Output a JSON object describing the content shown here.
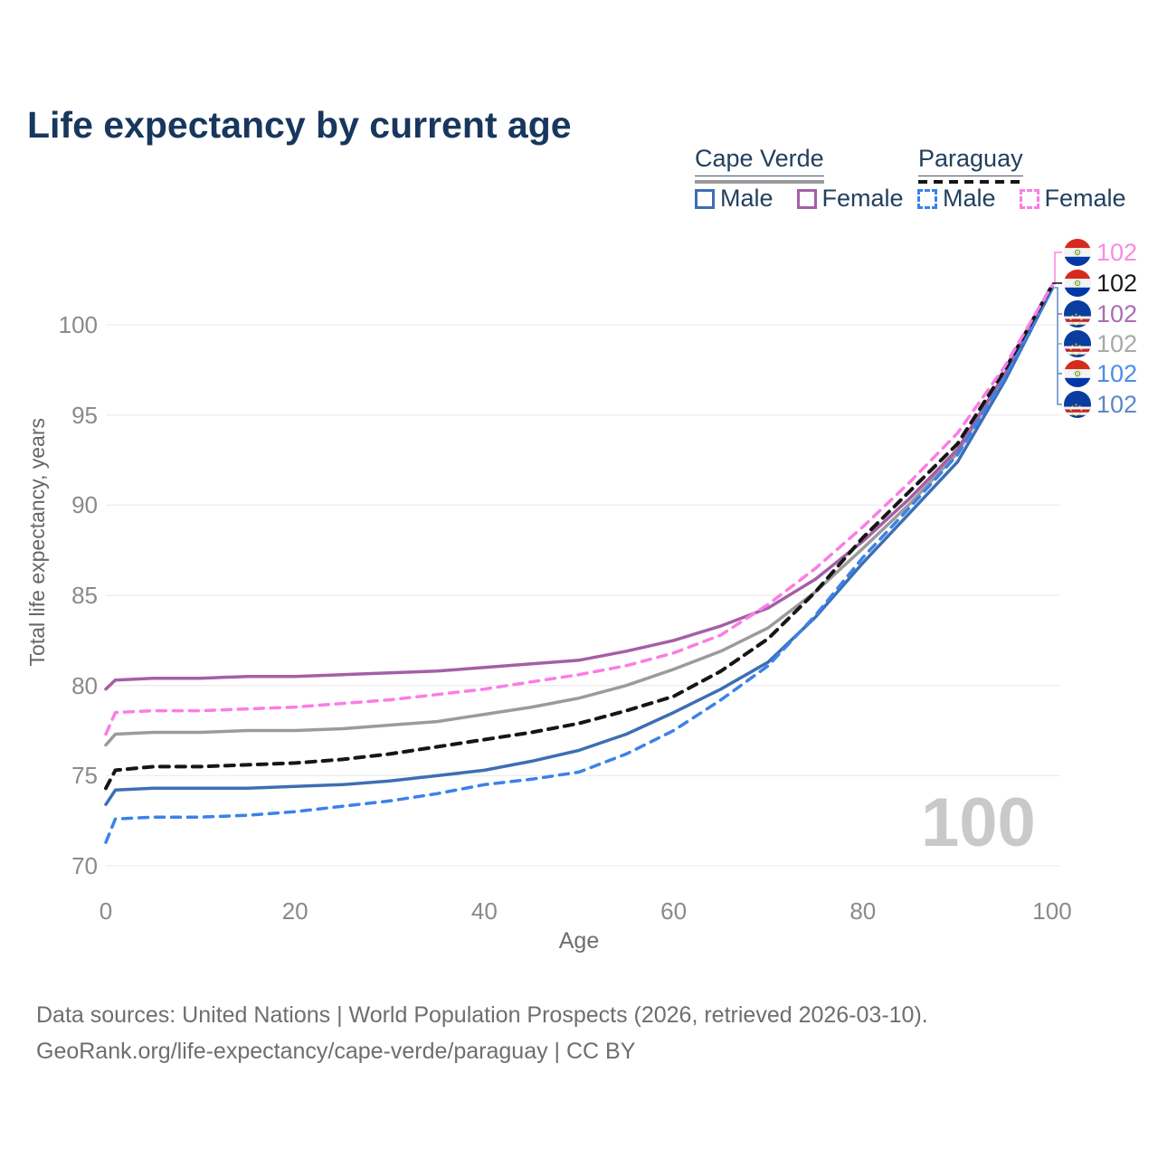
{
  "title": "Life expectancy by current age",
  "watermark": "100",
  "legend": {
    "groups": [
      {
        "label": "Cape Verde",
        "line_style": "solid",
        "line_color": "#9a9a9a",
        "items": [
          {
            "label": "Male",
            "color": "#3d6eb5",
            "dashed": false
          },
          {
            "label": "Female",
            "color": "#a45fa6",
            "dashed": false
          }
        ]
      },
      {
        "label": "Paraguay",
        "line_style": "dashed",
        "line_color": "#161616",
        "items": [
          {
            "label": "Male",
            "color": "#3b82e8",
            "dashed": true
          },
          {
            "label": "Female",
            "color": "#fb7de4",
            "dashed": true
          }
        ]
      }
    ]
  },
  "chart_data": {
    "type": "line",
    "title": "Life expectancy by current age",
    "xlabel": "Age",
    "ylabel": "Total life expectancy, years",
    "xlim": [
      0,
      100
    ],
    "ylim": [
      69.5,
      103
    ],
    "xticks": [
      0,
      20,
      40,
      60,
      80,
      100
    ],
    "yticks": [
      70,
      75,
      80,
      85,
      90,
      95,
      100
    ],
    "grid": "horizontal-only",
    "legend_position": "top-right",
    "x": [
      0,
      1,
      5,
      10,
      15,
      20,
      25,
      30,
      35,
      40,
      45,
      50,
      55,
      60,
      65,
      70,
      75,
      80,
      85,
      90,
      95,
      100
    ],
    "series": [
      {
        "name": "Cape Verde All",
        "country": "Cape Verde",
        "sex": "All",
        "color": "#9b9b9b",
        "dashed": false,
        "values": [
          76.7,
          77.3,
          77.4,
          77.4,
          77.5,
          77.5,
          77.6,
          77.8,
          78.0,
          78.4,
          78.8,
          79.3,
          80.0,
          80.9,
          81.9,
          83.2,
          85.2,
          87.6,
          90.1,
          92.9,
          97.2,
          102.1
        ]
      },
      {
        "name": "Cape Verde Female",
        "country": "Cape Verde",
        "sex": "Female",
        "color": "#a45fa6",
        "dashed": false,
        "values": [
          79.8,
          80.3,
          80.4,
          80.4,
          80.5,
          80.5,
          80.6,
          80.7,
          80.8,
          81.0,
          81.2,
          81.4,
          81.9,
          82.5,
          83.3,
          84.3,
          85.9,
          88.0,
          90.4,
          93.1,
          97.3,
          102.1
        ]
      },
      {
        "name": "Cape Verde Male",
        "country": "Cape Verde",
        "sex": "Male",
        "color": "#3d6eb5",
        "dashed": false,
        "values": [
          73.4,
          74.2,
          74.3,
          74.3,
          74.3,
          74.4,
          74.5,
          74.7,
          75.0,
          75.3,
          75.8,
          76.4,
          77.3,
          78.5,
          79.8,
          81.3,
          83.8,
          86.8,
          89.6,
          92.4,
          96.9,
          102.0
        ]
      },
      {
        "name": "Paraguay Male",
        "country": "Paraguay",
        "sex": "Male",
        "color": "#3b82e8",
        "dashed": true,
        "values": [
          71.3,
          72.6,
          72.7,
          72.7,
          72.8,
          73.0,
          73.3,
          73.6,
          74.0,
          74.5,
          74.8,
          75.2,
          76.2,
          77.5,
          79.2,
          81.1,
          83.9,
          87.1,
          89.9,
          92.8,
          97.1,
          102.0
        ]
      },
      {
        "name": "Paraguay All",
        "country": "Paraguay",
        "sex": "All",
        "color": "#161616",
        "dashed": true,
        "values": [
          74.3,
          75.3,
          75.5,
          75.5,
          75.6,
          75.7,
          75.9,
          76.2,
          76.6,
          77.0,
          77.4,
          77.9,
          78.6,
          79.4,
          80.8,
          82.6,
          85.2,
          88.2,
          90.8,
          93.4,
          97.5,
          102.2
        ]
      },
      {
        "name": "Paraguay Female",
        "country": "Paraguay",
        "sex": "Female",
        "color": "#fb7de4",
        "dashed": true,
        "values": [
          77.3,
          78.5,
          78.6,
          78.6,
          78.7,
          78.8,
          79.0,
          79.2,
          79.5,
          79.8,
          80.2,
          80.6,
          81.1,
          81.8,
          82.8,
          84.5,
          86.5,
          88.8,
          91.3,
          94.0,
          97.7,
          102.2
        ]
      }
    ],
    "end_labels": [
      {
        "value": "102",
        "flag": "paraguay",
        "color": "#fb8ae4",
        "series": "Paraguay Female"
      },
      {
        "value": "102",
        "flag": "paraguay",
        "color": "#1a1a1a",
        "series": "Paraguay All"
      },
      {
        "value": "102",
        "flag": "cape-verde",
        "color": "#ad6cb2",
        "series": "Cape Verde Female"
      },
      {
        "value": "102",
        "flag": "cape-verde",
        "color": "#a9a9a9",
        "series": "Cape Verde All"
      },
      {
        "value": "102",
        "flag": "paraguay",
        "color": "#4a8de8",
        "series": "Paraguay Male"
      },
      {
        "value": "102",
        "flag": "cape-verde",
        "color": "#5d87c6",
        "series": "Cape Verde Male"
      }
    ]
  },
  "footer": {
    "line1": "Data sources: United Nations | World Population Prospects (2026, retrieved 2026-03-10).",
    "line2": "GeoRank.org/life-expectancy/cape-verde/paraguay | CC BY"
  }
}
